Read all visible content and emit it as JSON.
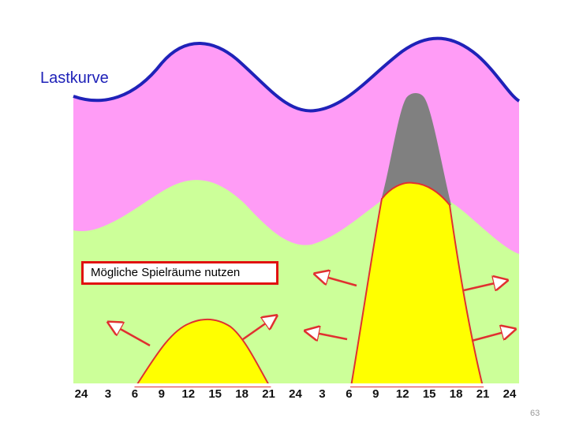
{
  "title": "Lastkurve",
  "note": "Mögliche Spielräume nutzen",
  "page_number": "63",
  "x_axis_ticks": [
    "24",
    "3",
    "6",
    "9",
    "12",
    "15",
    "18",
    "21",
    "24",
    "3",
    "6",
    "9",
    "12",
    "15",
    "18",
    "21",
    "24"
  ],
  "colors": {
    "load_curve_line": "#1f22b8",
    "load_area": "#ff9cf6",
    "base_area": "#ccff99",
    "peak_area": "#ffff00",
    "peak_top": "#808080",
    "outline": "#e03030"
  }
}
